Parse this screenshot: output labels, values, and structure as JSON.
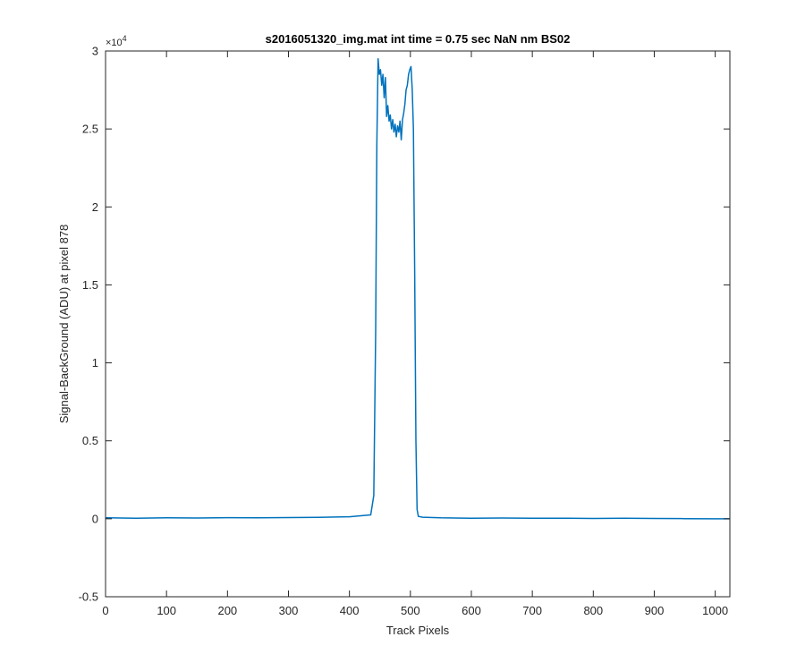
{
  "chart_data": {
    "type": "line",
    "title": "s2016051320_img.mat int time = 0.75 sec  NaN nm BS02",
    "xlabel": "Track Pixels",
    "ylabel": "Signal-BackGround (ADU) at pixel 878",
    "y_exponent_base": "×10",
    "y_exponent_power": "4",
    "xlim": [
      0,
      1024
    ],
    "ylim": [
      -5000,
      30000
    ],
    "y_scale_factor": 10000,
    "x_ticks": [
      0,
      100,
      200,
      300,
      400,
      500,
      600,
      700,
      800,
      900,
      1000
    ],
    "x_tick_labels": [
      "0",
      "100",
      "200",
      "300",
      "400",
      "500",
      "600",
      "700",
      "800",
      "900",
      "1000"
    ],
    "y_ticks": [
      -5000,
      0,
      5000,
      10000,
      15000,
      20000,
      25000,
      30000
    ],
    "y_tick_labels": [
      "-0.5",
      "0",
      "0.5",
      "1",
      "1.5",
      "2",
      "2.5",
      "3"
    ],
    "grid": false,
    "line_color": "#0072BD",
    "series": [
      {
        "x": [
          0,
          50,
          100,
          150,
          200,
          250,
          300,
          350,
          400,
          435,
          440,
          443,
          445,
          447,
          449,
          451,
          453,
          455,
          457,
          459,
          461,
          463,
          465,
          467,
          469,
          471,
          473,
          475,
          477,
          479,
          481,
          483,
          485,
          487,
          489,
          491,
          493,
          495,
          497,
          499,
          501,
          503,
          505,
          507,
          509,
          511,
          513,
          520,
          550,
          600,
          650,
          700,
          750,
          800,
          850,
          900,
          950,
          1000,
          1024
        ],
        "y": [
          60,
          40,
          60,
          50,
          70,
          60,
          80,
          90,
          130,
          250,
          1500,
          12000,
          24000,
          29500,
          28500,
          28800,
          27800,
          28500,
          27000,
          28300,
          25800,
          26500,
          25500,
          25900,
          25000,
          25600,
          24800,
          25300,
          24500,
          25200,
          24800,
          25500,
          24300,
          25600,
          26000,
          26600,
          27500,
          27800,
          28500,
          28800,
          29000,
          27500,
          25000,
          16000,
          5000,
          600,
          150,
          100,
          60,
          40,
          50,
          30,
          40,
          20,
          30,
          20,
          10,
          0,
          0
        ]
      }
    ]
  }
}
